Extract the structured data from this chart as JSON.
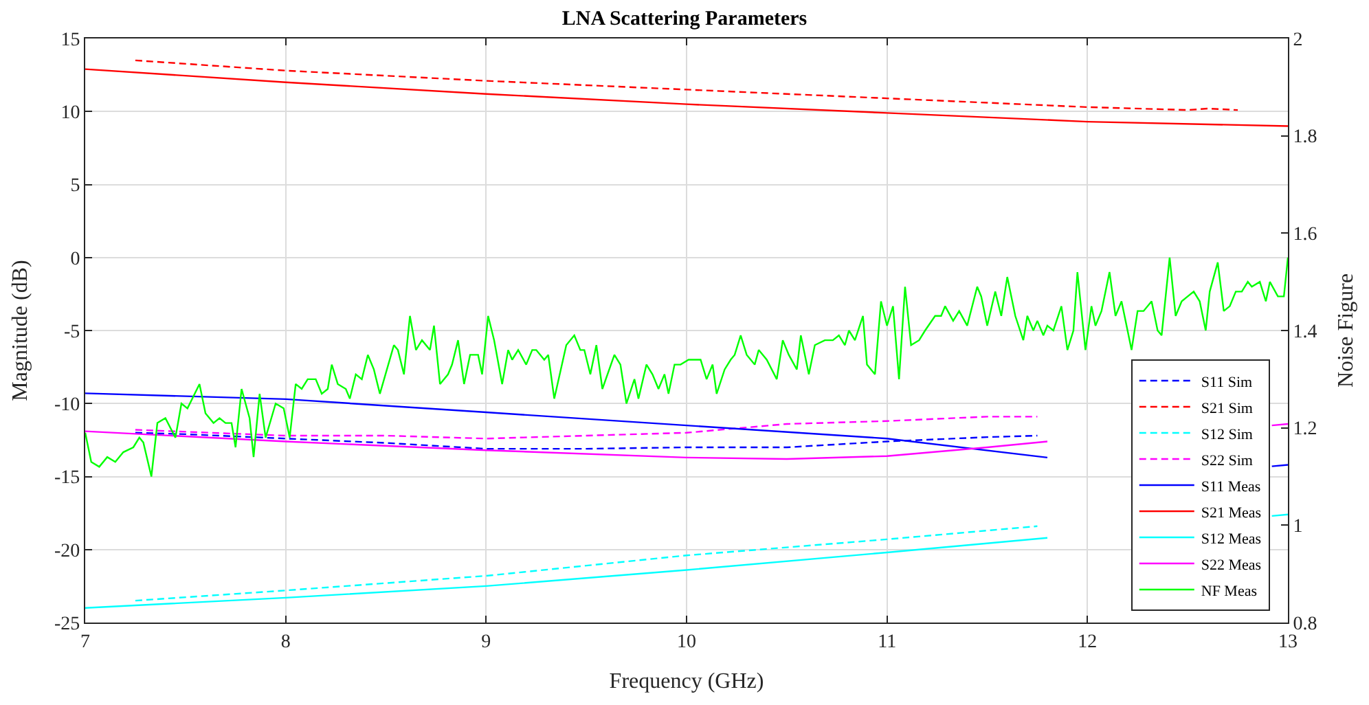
{
  "chart_data": {
    "type": "line",
    "title": "LNA Scattering Parameters",
    "xlabel": "Frequency (GHz)",
    "ylabel": "Magnitude (dB)",
    "y2label": "Noise Figure",
    "xlim": [
      7,
      13
    ],
    "xticks": [
      7,
      8,
      9,
      10,
      11,
      12,
      13
    ],
    "ylim": [
      -25,
      15
    ],
    "yticks": [
      -25,
      -20,
      -15,
      -10,
      -5,
      0,
      5,
      10,
      15
    ],
    "y2lim": [
      0.8,
      2
    ],
    "y2ticks": [
      0.8,
      1,
      1.2,
      1.4,
      1.6,
      1.8,
      2
    ],
    "grid": true,
    "legend": "bottom right",
    "marker": "none",
    "series": [
      {
        "name": "S11 Sim",
        "color": "#0000ff",
        "line_style": "dashed",
        "x": [
          7.25,
          7.5,
          8,
          8.5,
          9,
          9.5,
          10,
          10.5,
          11,
          11.5,
          11.75
        ],
        "values": [
          -12.0,
          -12.1,
          -12.4,
          -12.7,
          -13.1,
          -13.1,
          -13.0,
          -13.0,
          -12.6,
          -12.3,
          -12.2
        ]
      },
      {
        "name": "S21 Sim",
        "color": "#ff0000",
        "line_style": "dashed",
        "x": [
          7.25,
          8,
          9,
          10,
          11,
          12,
          12.5,
          12.6,
          12.75
        ],
        "values": [
          13.5,
          12.8,
          12.1,
          11.5,
          10.9,
          10.3,
          10.1,
          10.2,
          10.1
        ]
      },
      {
        "name": "S12 Sim",
        "color": "#00ffff",
        "line_style": "dashed",
        "x": [
          7.25,
          8,
          9,
          10,
          11,
          11.75
        ],
        "values": [
          -23.5,
          -22.8,
          -21.8,
          -20.4,
          -19.3,
          -18.4
        ]
      },
      {
        "name": "S22 Sim",
        "color": "#ff00ff",
        "line_style": "dashed",
        "x": [
          7.25,
          8,
          8.5,
          9,
          9.5,
          10,
          10.5,
          11,
          11.5,
          11.75
        ],
        "values": [
          -11.8,
          -12.2,
          -12.2,
          -12.4,
          -12.2,
          -12.0,
          -11.4,
          -11.2,
          -10.9,
          -10.9
        ]
      },
      {
        "name": "S11 Meas",
        "color": "#0000ff",
        "line_style": "solid",
        "x": [
          7,
          8,
          9,
          10,
          11,
          11.8,
          12.3,
          12.92,
          13
        ],
        "values": [
          -9.3,
          -9.7,
          -10.6,
          -11.5,
          -12.4,
          -13.7,
          null,
          -14.3,
          -14.2
        ]
      },
      {
        "name": "S21 Meas",
        "color": "#ff0000",
        "line_style": "solid",
        "x": [
          7,
          8,
          9,
          10,
          11,
          12,
          13
        ],
        "values": [
          12.9,
          12.0,
          11.2,
          10.5,
          9.9,
          9.3,
          9.0
        ]
      },
      {
        "name": "S12 Meas",
        "color": "#00ffff",
        "line_style": "solid",
        "x": [
          7,
          8,
          9,
          10,
          11,
          11.8,
          12.3,
          12.92,
          13
        ],
        "values": [
          -24.0,
          -23.3,
          -22.5,
          -21.4,
          -20.2,
          -19.2,
          null,
          -17.7,
          -17.6
        ]
      },
      {
        "name": "S22 Meas",
        "color": "#ff00ff",
        "line_style": "solid",
        "x": [
          7,
          8,
          9,
          10,
          10.5,
          11,
          11.5,
          11.8,
          12.3,
          12.92,
          13
        ],
        "values": [
          -11.9,
          -12.6,
          -13.2,
          -13.7,
          -13.8,
          -13.6,
          -13.0,
          -12.6,
          null,
          -11.5,
          -11.4
        ]
      },
      {
        "name": "NF Meas",
        "color": "#00ff00",
        "line_style": "solid",
        "axis": "y2",
        "x": [
          7.0,
          7.03,
          7.07,
          7.11,
          7.15,
          7.19,
          7.24,
          7.27,
          7.29,
          7.33,
          7.36,
          7.4,
          7.45,
          7.48,
          7.51,
          7.57,
          7.6,
          7.64,
          7.67,
          7.7,
          7.73,
          7.75,
          7.78,
          7.82,
          7.84,
          7.87,
          7.9,
          7.95,
          7.99,
          8.02,
          8.05,
          8.08,
          8.11,
          8.15,
          8.18,
          8.21,
          8.23,
          8.26,
          8.3,
          8.32,
          8.35,
          8.38,
          8.41,
          8.44,
          8.47,
          8.54,
          8.56,
          8.59,
          8.62,
          8.65,
          8.68,
          8.72,
          8.74,
          8.77,
          8.81,
          8.83,
          8.86,
          8.89,
          8.92,
          8.96,
          8.98,
          9.01,
          9.04,
          9.08,
          9.11,
          9.13,
          9.16,
          9.2,
          9.23,
          9.25,
          9.29,
          9.31,
          9.34,
          9.4,
          9.44,
          9.47,
          9.49,
          9.52,
          9.55,
          9.58,
          9.64,
          9.67,
          9.7,
          9.74,
          9.76,
          9.8,
          9.83,
          9.86,
          9.89,
          9.91,
          9.94,
          9.97,
          10.01,
          10.04,
          10.07,
          10.1,
          10.13,
          10.15,
          10.19,
          10.22,
          10.24,
          10.27,
          10.3,
          10.34,
          10.36,
          10.4,
          10.45,
          10.48,
          10.51,
          10.55,
          10.57,
          10.61,
          10.64,
          10.69,
          10.73,
          10.76,
          10.79,
          10.81,
          10.84,
          10.88,
          10.9,
          10.94,
          10.97,
          11.0,
          11.03,
          11.06,
          11.09,
          11.12,
          11.16,
          11.19,
          11.24,
          11.27,
          11.29,
          11.33,
          11.36,
          11.4,
          11.45,
          11.47,
          11.5,
          11.54,
          11.57,
          11.6,
          11.64,
          11.68,
          11.7,
          11.73,
          11.75,
          11.78,
          11.8,
          11.83,
          11.87,
          11.9,
          11.93,
          11.95,
          11.99,
          12.02,
          12.04,
          12.07,
          12.11,
          12.14,
          12.17,
          12.22,
          12.25,
          12.28,
          12.32,
          12.35,
          12.37,
          12.41,
          12.44,
          12.47,
          12.5,
          12.53,
          12.56,
          12.59,
          12.61,
          12.65,
          12.68,
          12.71,
          12.74,
          12.77,
          12.8,
          12.82,
          12.86,
          12.89,
          12.91,
          12.95,
          12.98,
          13.0
        ],
        "values": [
          1.19,
          1.13,
          1.12,
          1.14,
          1.13,
          1.15,
          1.16,
          1.18,
          1.17,
          1.1,
          1.21,
          1.22,
          1.18,
          1.25,
          1.24,
          1.29,
          1.23,
          1.21,
          1.22,
          1.21,
          1.21,
          1.16,
          1.28,
          1.22,
          1.14,
          1.27,
          1.18,
          1.25,
          1.24,
          1.18,
          1.29,
          1.28,
          1.3,
          1.3,
          1.27,
          1.28,
          1.33,
          1.29,
          1.28,
          1.26,
          1.31,
          1.3,
          1.35,
          1.32,
          1.27,
          1.37,
          1.36,
          1.31,
          1.43,
          1.36,
          1.38,
          1.36,
          1.41,
          1.29,
          1.31,
          1.33,
          1.38,
          1.29,
          1.35,
          1.35,
          1.31,
          1.43,
          1.38,
          1.29,
          1.36,
          1.34,
          1.36,
          1.33,
          1.36,
          1.36,
          1.34,
          1.35,
          1.26,
          1.37,
          1.39,
          1.36,
          1.36,
          1.31,
          1.37,
          1.28,
          1.35,
          1.33,
          1.25,
          1.3,
          1.26,
          1.33,
          1.31,
          1.28,
          1.31,
          1.27,
          1.33,
          1.33,
          1.34,
          1.34,
          1.34,
          1.3,
          1.33,
          1.27,
          1.32,
          1.34,
          1.35,
          1.39,
          1.35,
          1.33,
          1.36,
          1.34,
          1.3,
          1.38,
          1.35,
          1.32,
          1.39,
          1.31,
          1.37,
          1.38,
          1.38,
          1.39,
          1.37,
          1.4,
          1.38,
          1.43,
          1.33,
          1.31,
          1.46,
          1.41,
          1.45,
          1.3,
          1.49,
          1.37,
          1.38,
          1.4,
          1.43,
          1.43,
          1.45,
          1.42,
          1.44,
          1.41,
          1.49,
          1.47,
          1.41,
          1.48,
          1.43,
          1.51,
          1.43,
          1.38,
          1.43,
          1.4,
          1.42,
          1.39,
          1.41,
          1.4,
          1.45,
          1.36,
          1.4,
          1.52,
          1.36,
          1.45,
          1.41,
          1.44,
          1.52,
          1.43,
          1.46,
          1.36,
          1.44,
          1.44,
          1.46,
          1.4,
          1.39,
          1.55,
          1.43,
          1.46,
          1.47,
          1.48,
          1.46,
          1.4,
          1.48,
          1.54,
          1.44,
          1.45,
          1.48,
          1.48,
          1.5,
          1.49,
          1.5,
          1.46,
          1.5,
          1.47,
          1.47,
          1.55
        ]
      }
    ]
  }
}
